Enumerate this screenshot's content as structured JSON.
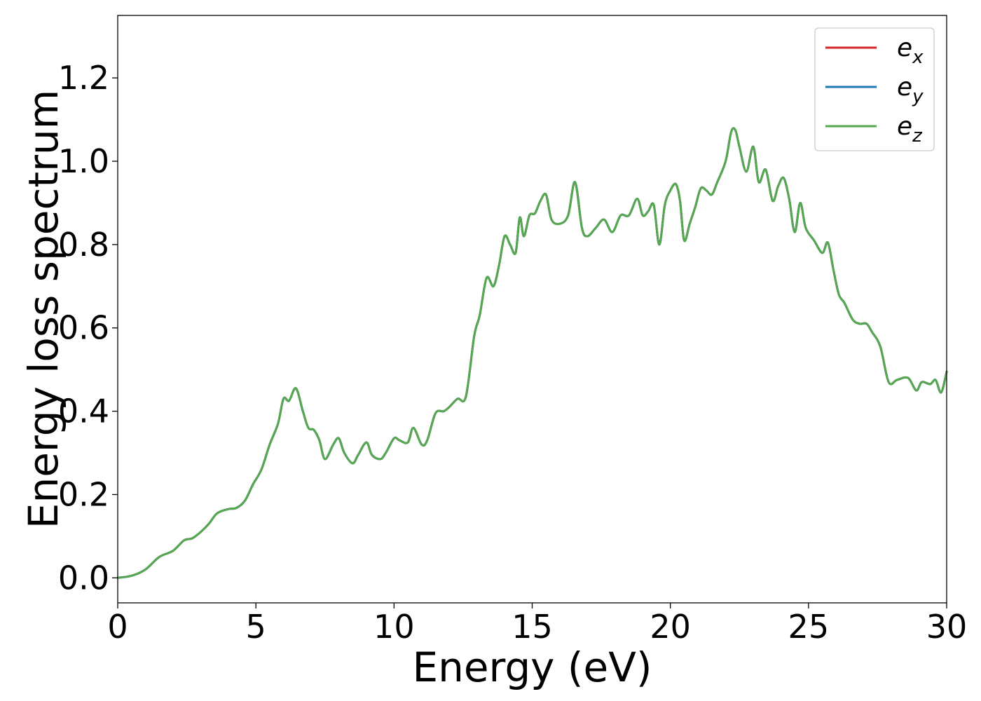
{
  "chart_data": {
    "type": "line",
    "title": "",
    "xlabel": "Energy (eV)",
    "ylabel": "Energy loss spectrum",
    "xlim": [
      0,
      30
    ],
    "ylim": [
      -0.06,
      1.35
    ],
    "xticks": [
      0,
      5,
      10,
      15,
      20,
      25,
      30
    ],
    "yticks": [
      0.0,
      0.2,
      0.4,
      0.6,
      0.8,
      1.0,
      1.2
    ],
    "xtick_labels": [
      "0",
      "5",
      "10",
      "15",
      "20",
      "25",
      "30"
    ],
    "ytick_labels": [
      "0.0",
      "0.2",
      "0.4",
      "0.6",
      "0.8",
      "1.0",
      "1.2"
    ],
    "grid": false,
    "legend_position": "top-right",
    "series": [
      {
        "name": "e_x",
        "legend_base": "e",
        "legend_sub": "x",
        "color": "#d62728",
        "x": [
          0,
          0.5,
          1.0,
          1.5,
          2.0,
          2.4,
          2.7,
          3.0,
          3.3,
          3.6,
          4.0,
          4.3,
          4.6,
          4.9,
          5.2,
          5.5,
          5.8,
          6.0,
          6.2,
          6.45,
          6.7,
          6.9,
          7.1,
          7.3,
          7.5,
          7.8,
          8.0,
          8.2,
          8.5,
          8.7,
          9.0,
          9.2,
          9.5,
          9.7,
          10.0,
          10.2,
          10.5,
          10.7,
          11.0,
          11.2,
          11.5,
          11.8,
          12.0,
          12.3,
          12.6,
          12.9,
          13.1,
          13.35,
          13.6,
          13.8,
          14.0,
          14.2,
          14.4,
          14.55,
          14.7,
          14.9,
          15.1,
          15.3,
          15.5,
          15.7,
          16.0,
          16.3,
          16.55,
          16.8,
          17.0,
          17.3,
          17.6,
          17.9,
          18.2,
          18.5,
          18.8,
          19.0,
          19.2,
          19.4,
          19.6,
          19.8,
          20.0,
          20.2,
          20.35,
          20.5,
          20.7,
          20.9,
          21.1,
          21.3,
          21.5,
          21.7,
          22.0,
          22.2,
          22.35,
          22.5,
          22.75,
          23.0,
          23.2,
          23.45,
          23.7,
          23.9,
          24.1,
          24.3,
          24.5,
          24.7,
          24.9,
          25.2,
          25.5,
          25.7,
          25.9,
          26.1,
          26.3,
          26.6,
          26.85,
          27.1,
          27.3,
          27.6,
          27.9,
          28.2,
          28.6,
          28.9,
          29.1,
          29.4,
          29.6,
          29.8,
          30.0
        ],
        "y": [
          0.0,
          0.005,
          0.02,
          0.05,
          0.065,
          0.09,
          0.095,
          0.11,
          0.13,
          0.155,
          0.165,
          0.168,
          0.185,
          0.225,
          0.26,
          0.32,
          0.37,
          0.43,
          0.425,
          0.455,
          0.4,
          0.36,
          0.355,
          0.33,
          0.285,
          0.32,
          0.335,
          0.3,
          0.275,
          0.295,
          0.325,
          0.295,
          0.285,
          0.3,
          0.335,
          0.33,
          0.325,
          0.36,
          0.32,
          0.33,
          0.395,
          0.4,
          0.41,
          0.43,
          0.435,
          0.58,
          0.63,
          0.72,
          0.7,
          0.75,
          0.82,
          0.8,
          0.78,
          0.865,
          0.82,
          0.87,
          0.875,
          0.905,
          0.92,
          0.86,
          0.85,
          0.87,
          0.95,
          0.84,
          0.82,
          0.84,
          0.86,
          0.83,
          0.87,
          0.87,
          0.91,
          0.87,
          0.88,
          0.895,
          0.8,
          0.895,
          0.93,
          0.945,
          0.905,
          0.81,
          0.85,
          0.89,
          0.935,
          0.93,
          0.92,
          0.95,
          1.0,
          1.07,
          1.075,
          1.035,
          0.975,
          1.035,
          0.95,
          0.98,
          0.905,
          0.94,
          0.96,
          0.91,
          0.83,
          0.9,
          0.84,
          0.81,
          0.78,
          0.805,
          0.74,
          0.68,
          0.66,
          0.62,
          0.61,
          0.61,
          0.59,
          0.555,
          0.47,
          0.475,
          0.48,
          0.45,
          0.47,
          0.465,
          0.475,
          0.445,
          0.495
        ]
      },
      {
        "name": "e_y",
        "legend_base": "e",
        "legend_sub": "y",
        "color": "#1f77b4",
        "x": [
          0,
          0.5,
          1.0,
          1.5,
          2.0,
          2.4,
          2.7,
          3.0,
          3.3,
          3.6,
          4.0,
          4.3,
          4.6,
          4.9,
          5.2,
          5.5,
          5.8,
          6.0,
          6.2,
          6.45,
          6.7,
          6.9,
          7.1,
          7.3,
          7.5,
          7.8,
          8.0,
          8.2,
          8.5,
          8.7,
          9.0,
          9.2,
          9.5,
          9.7,
          10.0,
          10.2,
          10.5,
          10.7,
          11.0,
          11.2,
          11.5,
          11.8,
          12.0,
          12.3,
          12.6,
          12.9,
          13.1,
          13.35,
          13.6,
          13.8,
          14.0,
          14.2,
          14.4,
          14.55,
          14.7,
          14.9,
          15.1,
          15.3,
          15.5,
          15.7,
          16.0,
          16.3,
          16.55,
          16.8,
          17.0,
          17.3,
          17.6,
          17.9,
          18.2,
          18.5,
          18.8,
          19.0,
          19.2,
          19.4,
          19.6,
          19.8,
          20.0,
          20.2,
          20.35,
          20.5,
          20.7,
          20.9,
          21.1,
          21.3,
          21.5,
          21.7,
          22.0,
          22.2,
          22.35,
          22.5,
          22.75,
          23.0,
          23.2,
          23.45,
          23.7,
          23.9,
          24.1,
          24.3,
          24.5,
          24.7,
          24.9,
          25.2,
          25.5,
          25.7,
          25.9,
          26.1,
          26.3,
          26.6,
          26.85,
          27.1,
          27.3,
          27.6,
          27.9,
          28.2,
          28.6,
          28.9,
          29.1,
          29.4,
          29.6,
          29.8,
          30.0
        ],
        "y": [
          0.0,
          0.005,
          0.02,
          0.05,
          0.065,
          0.09,
          0.095,
          0.11,
          0.13,
          0.155,
          0.165,
          0.168,
          0.185,
          0.225,
          0.26,
          0.32,
          0.37,
          0.43,
          0.425,
          0.455,
          0.4,
          0.36,
          0.355,
          0.33,
          0.285,
          0.32,
          0.335,
          0.3,
          0.275,
          0.295,
          0.325,
          0.295,
          0.285,
          0.3,
          0.335,
          0.33,
          0.325,
          0.36,
          0.32,
          0.33,
          0.395,
          0.4,
          0.41,
          0.43,
          0.435,
          0.58,
          0.63,
          0.72,
          0.7,
          0.75,
          0.82,
          0.8,
          0.78,
          0.865,
          0.82,
          0.87,
          0.875,
          0.905,
          0.92,
          0.86,
          0.85,
          0.87,
          0.95,
          0.84,
          0.82,
          0.84,
          0.86,
          0.83,
          0.87,
          0.87,
          0.91,
          0.87,
          0.88,
          0.895,
          0.8,
          0.895,
          0.93,
          0.945,
          0.905,
          0.81,
          0.85,
          0.89,
          0.935,
          0.93,
          0.92,
          0.95,
          1.0,
          1.07,
          1.075,
          1.035,
          0.975,
          1.035,
          0.95,
          0.98,
          0.905,
          0.94,
          0.96,
          0.91,
          0.83,
          0.9,
          0.84,
          0.81,
          0.78,
          0.805,
          0.74,
          0.68,
          0.66,
          0.62,
          0.61,
          0.61,
          0.59,
          0.555,
          0.47,
          0.475,
          0.48,
          0.45,
          0.47,
          0.465,
          0.475,
          0.445,
          0.495
        ]
      },
      {
        "name": "e_z",
        "legend_base": "e",
        "legend_sub": "z",
        "color": "#55a84f",
        "x": [
          0,
          0.5,
          1.0,
          1.5,
          2.0,
          2.4,
          2.7,
          3.0,
          3.3,
          3.6,
          4.0,
          4.3,
          4.6,
          4.9,
          5.2,
          5.5,
          5.8,
          6.0,
          6.2,
          6.45,
          6.7,
          6.9,
          7.1,
          7.3,
          7.5,
          7.8,
          8.0,
          8.2,
          8.5,
          8.7,
          9.0,
          9.2,
          9.5,
          9.7,
          10.0,
          10.2,
          10.5,
          10.7,
          11.0,
          11.2,
          11.5,
          11.8,
          12.0,
          12.3,
          12.6,
          12.9,
          13.1,
          13.35,
          13.6,
          13.8,
          14.0,
          14.2,
          14.4,
          14.55,
          14.7,
          14.9,
          15.1,
          15.3,
          15.5,
          15.7,
          16.0,
          16.3,
          16.55,
          16.8,
          17.0,
          17.3,
          17.6,
          17.9,
          18.2,
          18.5,
          18.8,
          19.0,
          19.2,
          19.4,
          19.6,
          19.8,
          20.0,
          20.2,
          20.35,
          20.5,
          20.7,
          20.9,
          21.1,
          21.3,
          21.5,
          21.7,
          22.0,
          22.2,
          22.35,
          22.5,
          22.75,
          23.0,
          23.2,
          23.45,
          23.7,
          23.9,
          24.1,
          24.3,
          24.5,
          24.7,
          24.9,
          25.2,
          25.5,
          25.7,
          25.9,
          26.1,
          26.3,
          26.6,
          26.85,
          27.1,
          27.3,
          27.6,
          27.9,
          28.2,
          28.6,
          28.9,
          29.1,
          29.4,
          29.6,
          29.8,
          30.0
        ],
        "y": [
          0.0,
          0.005,
          0.02,
          0.05,
          0.065,
          0.09,
          0.095,
          0.11,
          0.13,
          0.155,
          0.165,
          0.168,
          0.185,
          0.225,
          0.26,
          0.32,
          0.37,
          0.43,
          0.425,
          0.455,
          0.4,
          0.36,
          0.355,
          0.33,
          0.285,
          0.32,
          0.335,
          0.3,
          0.275,
          0.295,
          0.325,
          0.295,
          0.285,
          0.3,
          0.335,
          0.33,
          0.325,
          0.36,
          0.32,
          0.33,
          0.395,
          0.4,
          0.41,
          0.43,
          0.435,
          0.58,
          0.63,
          0.72,
          0.7,
          0.75,
          0.82,
          0.8,
          0.78,
          0.865,
          0.82,
          0.87,
          0.875,
          0.905,
          0.92,
          0.86,
          0.85,
          0.87,
          0.95,
          0.84,
          0.82,
          0.84,
          0.86,
          0.83,
          0.87,
          0.87,
          0.91,
          0.87,
          0.88,
          0.895,
          0.8,
          0.895,
          0.93,
          0.945,
          0.905,
          0.81,
          0.85,
          0.89,
          0.935,
          0.93,
          0.92,
          0.95,
          1.0,
          1.07,
          1.075,
          1.035,
          0.975,
          1.035,
          0.95,
          0.98,
          0.905,
          0.94,
          0.96,
          0.91,
          0.83,
          0.9,
          0.84,
          0.81,
          0.78,
          0.805,
          0.74,
          0.68,
          0.66,
          0.62,
          0.61,
          0.61,
          0.59,
          0.555,
          0.47,
          0.475,
          0.48,
          0.45,
          0.47,
          0.465,
          0.475,
          0.445,
          0.495
        ]
      }
    ]
  }
}
